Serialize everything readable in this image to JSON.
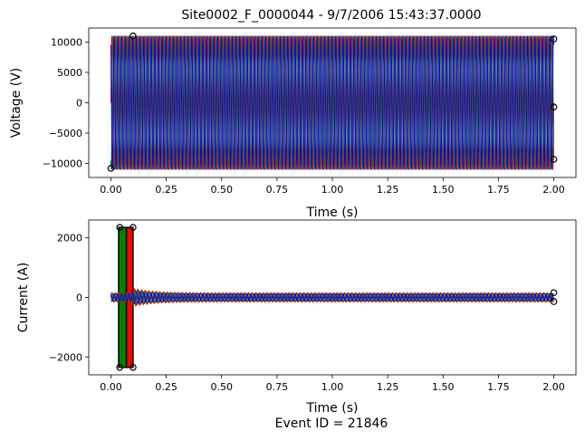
{
  "figure": {
    "title": "Site0002_F_0000044 - 9/7/2006 15:43:37.0000",
    "footer": "Event ID = 21846"
  },
  "chart_data": [
    {
      "type": "line",
      "title": "Site0002_F_0000044 - 9/7/2006 15:43:37.0000",
      "xlabel": "Time (s)",
      "ylabel": "Voltage (V)",
      "xlim": [
        -0.1,
        2.1
      ],
      "ylim": [
        -12300,
        12300
      ],
      "xticks": [
        0.0,
        0.25,
        0.5,
        0.75,
        1.0,
        1.25,
        1.5,
        1.75,
        2.0
      ],
      "xtick_labels": [
        "0.00",
        "0.25",
        "0.50",
        "0.75",
        "1.00",
        "1.25",
        "1.50",
        "1.75",
        "2.00"
      ],
      "yticks": [
        -10000,
        -5000,
        0,
        5000,
        10000
      ],
      "ytick_labels": [
        "−10000",
        "−5000",
        "0",
        "5000",
        "10000"
      ],
      "signal": {
        "frequency_hz": 60,
        "t_start": 0.0,
        "t_end": 2.0
      },
      "series": [
        {
          "color": "#ff0000",
          "amplitude": 11000,
          "phase_deg": 0
        },
        {
          "color": "#008000",
          "amplitude": 11000,
          "phase_deg": -120
        },
        {
          "color": "#0000ff",
          "amplitude": 11000,
          "phase_deg": 120
        }
      ],
      "marker_points": [
        {
          "x": 2.0,
          "y": 10500
        },
        {
          "x": 2.0,
          "y": -700
        },
        {
          "x": 2.0,
          "y": -9300
        },
        {
          "x": 0.1,
          "y": 11000
        },
        {
          "x": 0.0,
          "y": -10800
        }
      ],
      "grid": false
    },
    {
      "type": "line",
      "title": "",
      "xlabel": "Time (s)",
      "ylabel": "Current (A)",
      "xlim": [
        -0.1,
        2.1
      ],
      "ylim": [
        -2600,
        2600
      ],
      "xticks": [
        0.0,
        0.25,
        0.5,
        0.75,
        1.0,
        1.25,
        1.5,
        1.75,
        2.0
      ],
      "xtick_labels": [
        "0.00",
        "0.25",
        "0.50",
        "0.75",
        "1.00",
        "1.25",
        "1.50",
        "1.75",
        "2.00"
      ],
      "yticks": [
        -2000,
        0,
        2000
      ],
      "ytick_labels": [
        "−2000",
        "0",
        "2000"
      ],
      "signal": {
        "frequency_hz": 60,
        "t_start": 0.0,
        "t_end": 2.0
      },
      "fault_blocks": [
        {
          "color": "#ff0000",
          "t_start": 0.04,
          "t_end": 0.1,
          "y_min": -2350,
          "y_max": 2350
        },
        {
          "color": "#008000",
          "t_start": 0.035,
          "t_end": 0.07,
          "y_min": -2350,
          "y_max": 2350
        }
      ],
      "series": [
        {
          "color": "#ff0000",
          "steady_amplitude": 160,
          "decay_peak": 320,
          "phase_deg": 0
        },
        {
          "color": "#008000",
          "steady_amplitude": 140,
          "decay_peak": 280,
          "phase_deg": -120
        },
        {
          "color": "#0000ff",
          "steady_amplitude": 120,
          "decay_peak": 220,
          "phase_deg": 120
        }
      ],
      "marker_points": [
        {
          "x": 2.0,
          "y": 160
        },
        {
          "x": 2.0,
          "y": -140
        },
        {
          "x": 0.04,
          "y": 2350
        },
        {
          "x": 0.04,
          "y": -2350
        },
        {
          "x": 0.1,
          "y": 2350
        },
        {
          "x": 0.1,
          "y": -2350
        }
      ],
      "grid": false
    }
  ]
}
